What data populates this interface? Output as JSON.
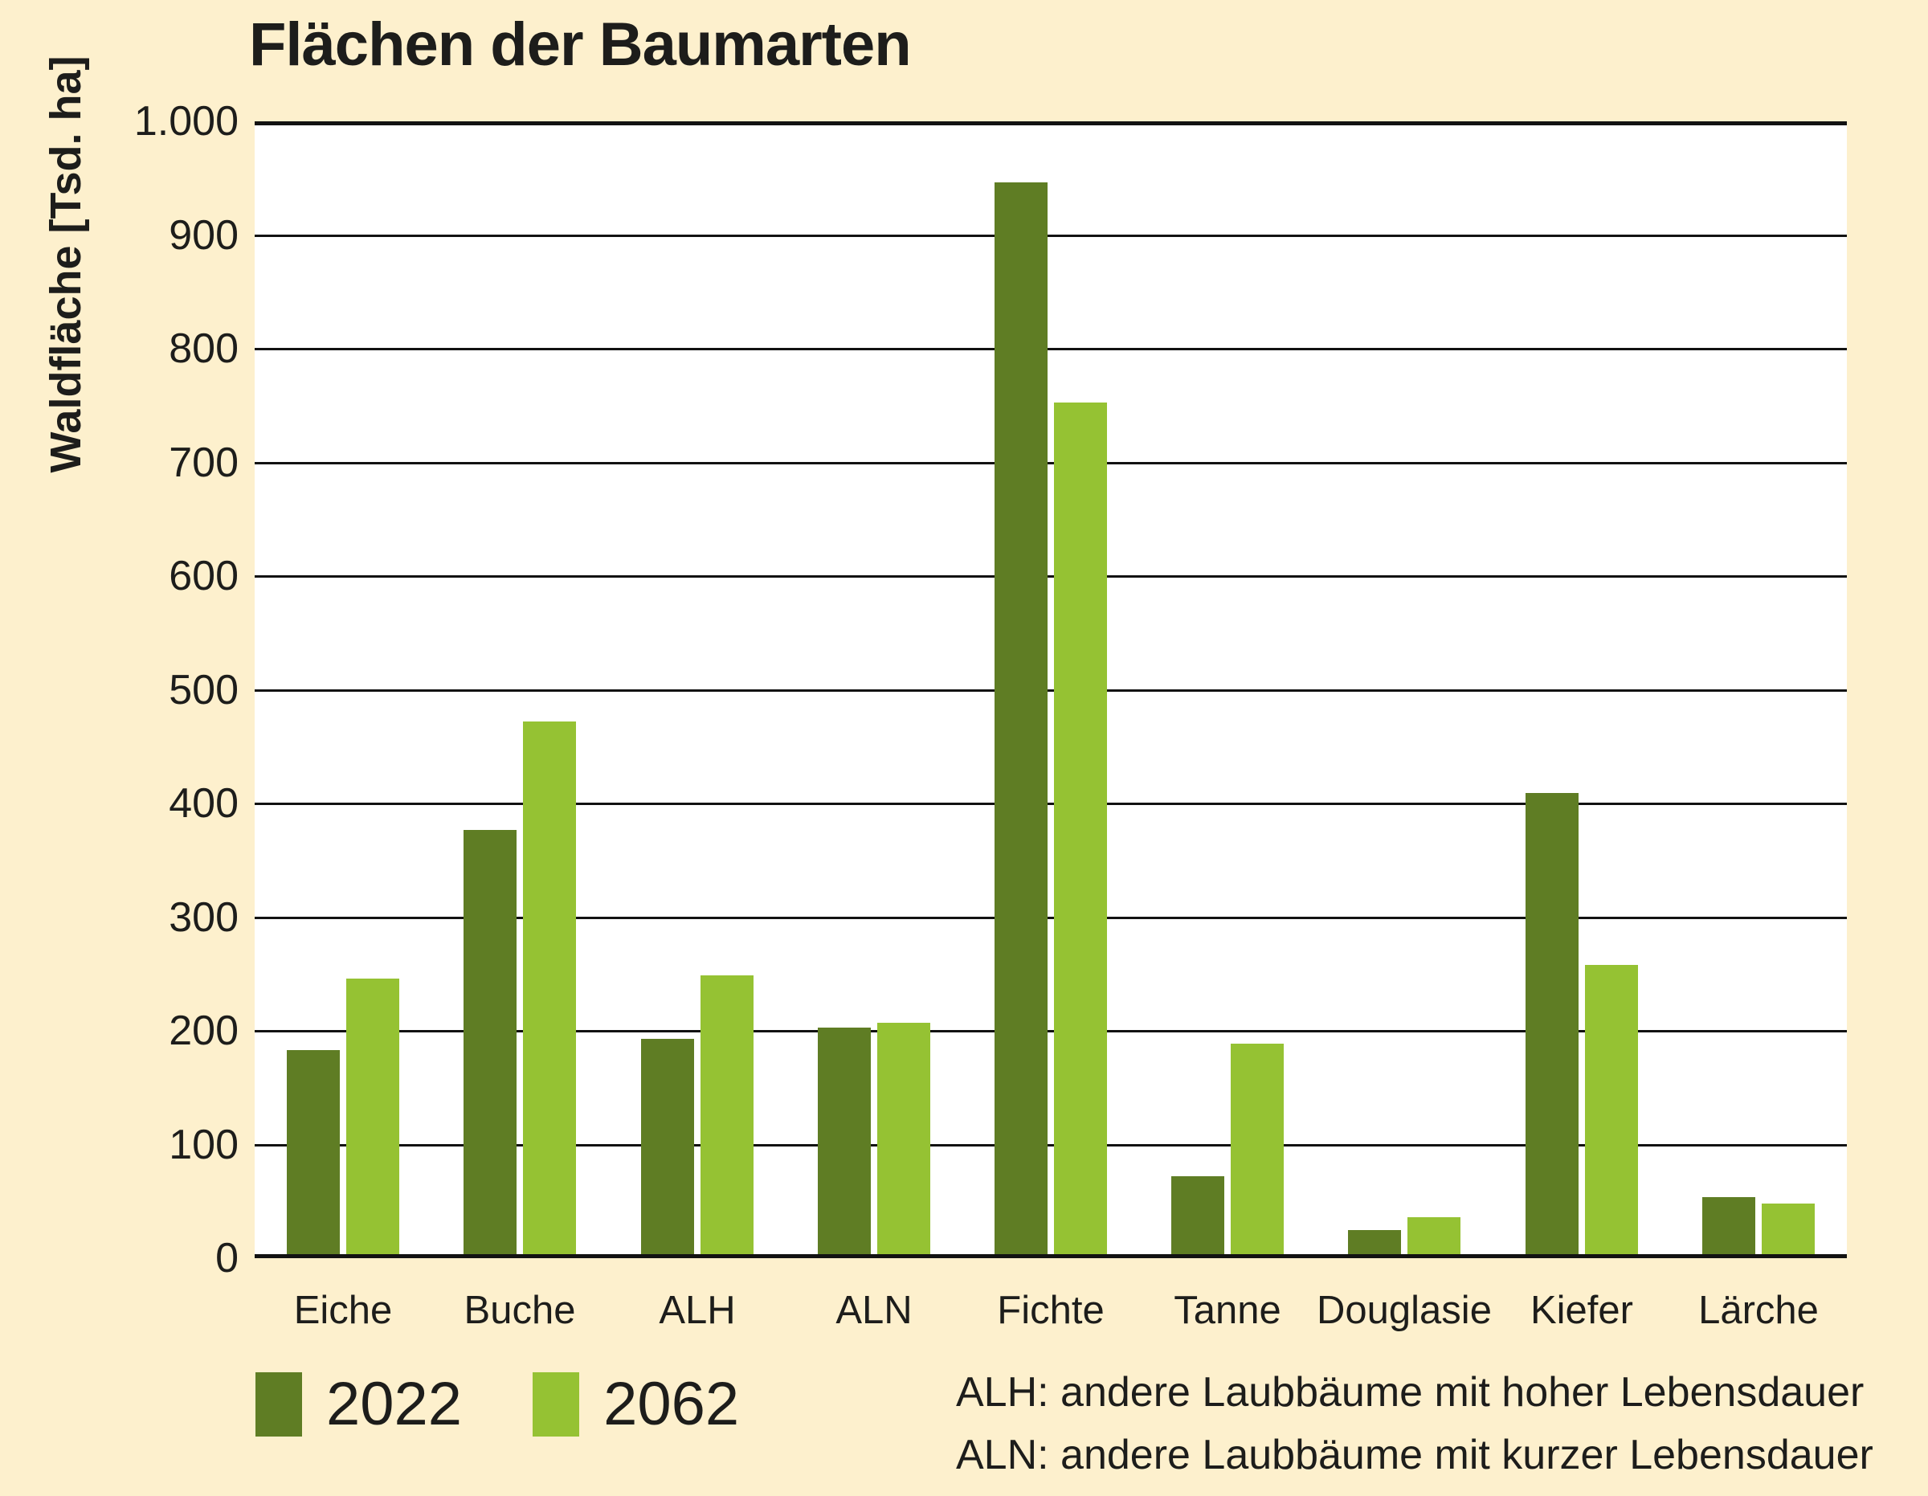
{
  "title": "Flächen der Baumarten",
  "y_axis": {
    "label": "Waldfläche [Tsd. ha]",
    "tick_labels": [
      "1.000",
      "900",
      "800",
      "700",
      "600",
      "500",
      "400",
      "300",
      "200",
      "100",
      "0"
    ]
  },
  "legend": {
    "items": [
      {
        "label": "2022",
        "color": "#5f7d24"
      },
      {
        "label": "2062",
        "color": "#95c233"
      }
    ]
  },
  "footnotes": [
    "ALH: andere Laubbäume mit hoher Lebensdauer",
    "ALN: andere Laubbäume mit kurzer Lebensdauer"
  ],
  "colors": {
    "background": "#fdf0cd",
    "plot_background": "#ffffff",
    "gridline": "#121212",
    "text": "#1d1d1b"
  },
  "chart_data": {
    "type": "bar",
    "title": "Flächen der Baumarten",
    "ylabel": "Waldfläche [Tsd. ha]",
    "xlabel": "",
    "ylim": [
      0,
      1000
    ],
    "ytick_step": 100,
    "grid": true,
    "legend_position": "bottom-left",
    "categories": [
      "Eiche",
      "Buche",
      "ALH",
      "ALN",
      "Fichte",
      "Tanne",
      "Douglasie",
      "Kiefer",
      "Lärche"
    ],
    "series": [
      {
        "name": "2022",
        "color": "#5f7d24",
        "values": [
          183,
          377,
          193,
          203,
          946,
          72,
          25,
          409,
          54
        ]
      },
      {
        "name": "2062",
        "color": "#95c233",
        "values": [
          246,
          472,
          249,
          207,
          753,
          189,
          36,
          258,
          48
        ]
      }
    ]
  }
}
